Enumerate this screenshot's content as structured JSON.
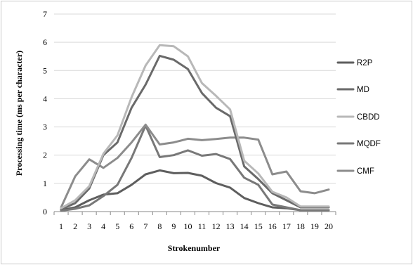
{
  "chart_data": {
    "type": "line",
    "xlabel": "Strokenumber",
    "ylabel": "Processing time (ms per character)",
    "x": [
      1,
      2,
      3,
      4,
      5,
      6,
      7,
      8,
      9,
      10,
      11,
      12,
      13,
      14,
      15,
      16,
      17,
      18,
      19,
      20
    ],
    "ylim": [
      0,
      7
    ],
    "yticks": [
      0,
      1,
      2,
      3,
      4,
      5,
      6,
      7
    ],
    "grid": "horizontal",
    "legend_position": "right",
    "series": [
      {
        "name": "R2P",
        "color": "#5e5e5e",
        "values": [
          0.05,
          0.15,
          0.4,
          0.6,
          0.65,
          0.95,
          1.32,
          1.46,
          1.36,
          1.37,
          1.27,
          1.01,
          0.85,
          0.48,
          0.3,
          0.15,
          0.12,
          0.05,
          0.05,
          0.05
        ]
      },
      {
        "name": "MD",
        "color": "#6a6a6a",
        "values": [
          0.08,
          0.3,
          0.82,
          2.0,
          2.45,
          3.68,
          4.5,
          5.52,
          5.38,
          5.05,
          4.2,
          3.68,
          3.38,
          1.6,
          1.15,
          0.65,
          0.4,
          0.15,
          0.15,
          0.15
        ]
      },
      {
        "name": "CBDD",
        "color": "#b8b8b8",
        "values": [
          0.12,
          0.4,
          0.9,
          2.05,
          2.7,
          4.05,
          5.18,
          5.9,
          5.86,
          5.5,
          4.55,
          4.1,
          3.62,
          1.8,
          1.35,
          0.7,
          0.5,
          0.18,
          0.18,
          0.18
        ]
      },
      {
        "name": "MQDF",
        "color": "#787878",
        "values": [
          0.03,
          0.1,
          0.22,
          0.55,
          0.95,
          1.9,
          3.05,
          1.93,
          2.0,
          2.17,
          1.98,
          2.04,
          1.86,
          1.2,
          0.95,
          0.25,
          0.15,
          0.05,
          0.05,
          0.05
        ]
      },
      {
        "name": "CMF",
        "color": "#8c8c8c",
        "values": [
          0.15,
          1.25,
          1.85,
          1.55,
          1.9,
          2.45,
          3.08,
          2.38,
          2.45,
          2.58,
          2.53,
          2.57,
          2.62,
          2.62,
          2.55,
          1.32,
          1.42,
          0.72,
          0.65,
          0.78
        ]
      }
    ]
  }
}
